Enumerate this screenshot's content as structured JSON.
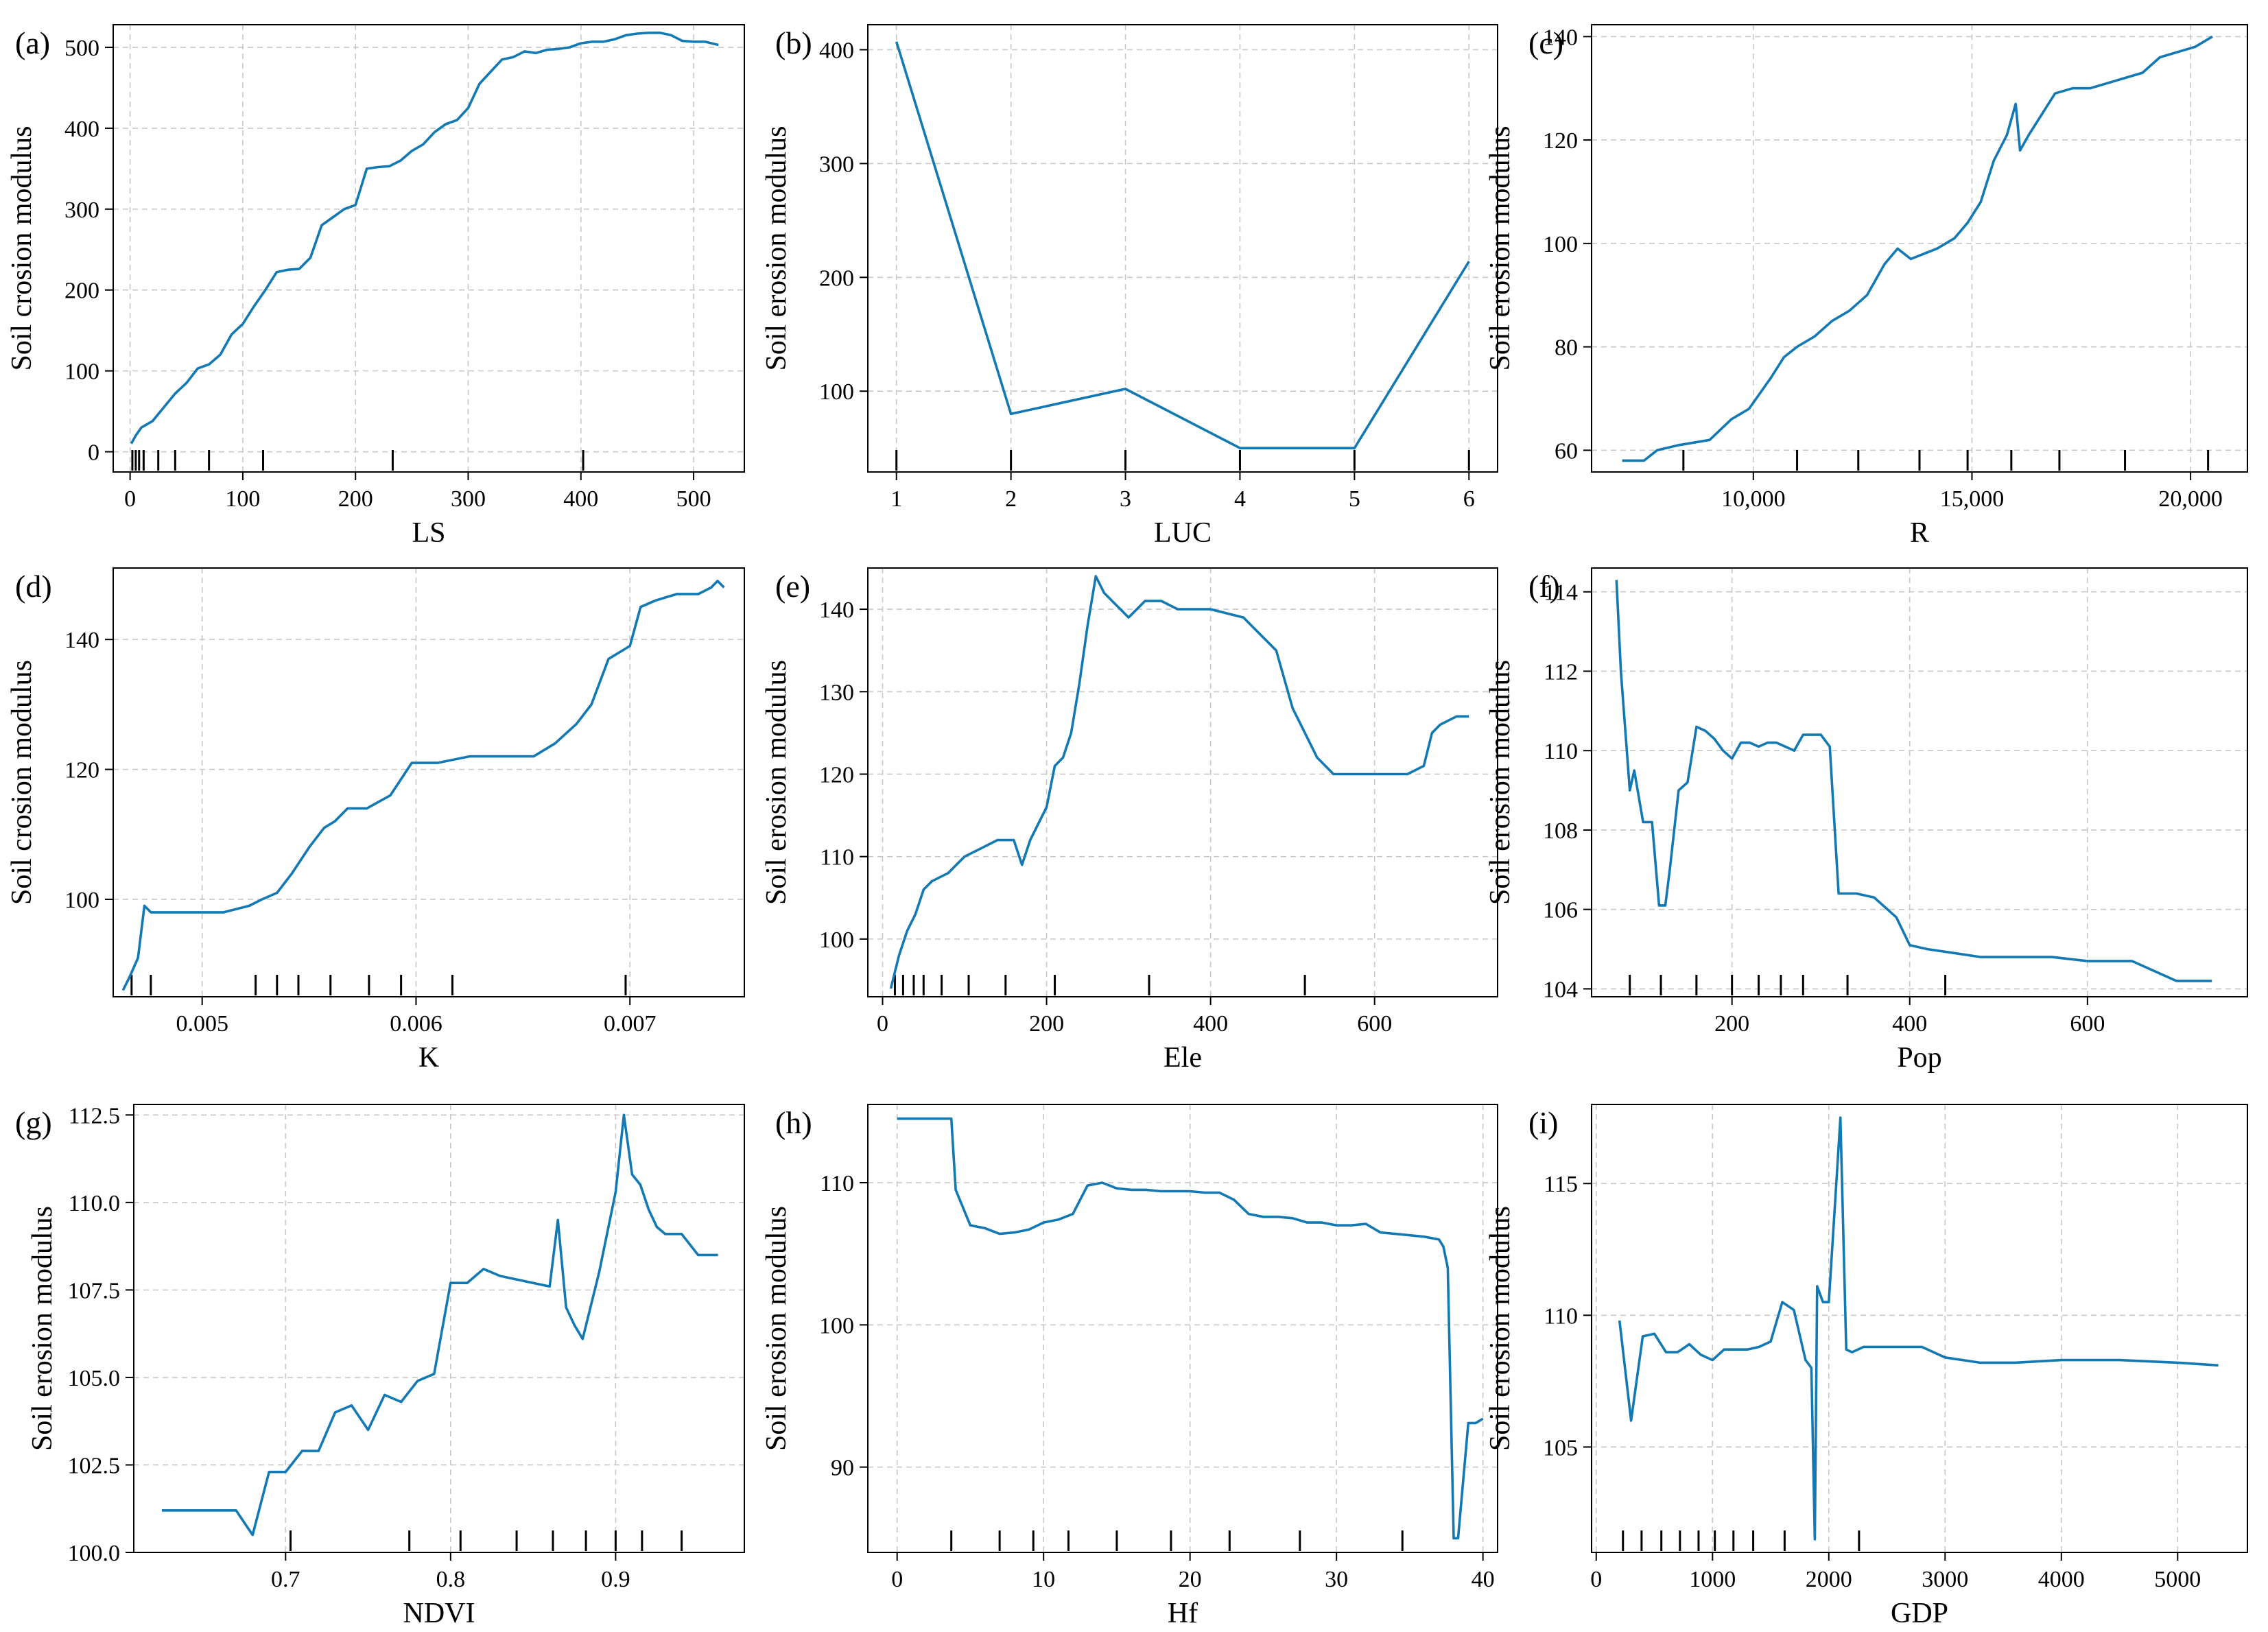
{
  "figure": {
    "series_color": "#1279b4",
    "line_shown_by": "line-chart"
  },
  "chart_data": [
    {
      "panel": "(a)",
      "type": "line",
      "xlabel": "LS",
      "ylabel": "Soil crosion modulus",
      "xlim": [
        -15,
        545
      ],
      "ylim": [
        -25,
        528
      ],
      "xticks": [
        0,
        100,
        200,
        300,
        400,
        500
      ],
      "xtick_labels": [
        "0",
        "100",
        "200",
        "300",
        "400",
        "500"
      ],
      "yticks": [
        0,
        100,
        200,
        300,
        400,
        500
      ],
      "ytick_labels": [
        "0",
        "100",
        "200",
        "300",
        "400",
        "500"
      ],
      "grid": true,
      "rug": [
        2,
        5,
        8,
        12,
        25,
        40,
        70,
        118,
        233,
        402
      ],
      "x": [
        1,
        5,
        10,
        20,
        30,
        40,
        50,
        60,
        70,
        80,
        90,
        100,
        110,
        120,
        130,
        140,
        150,
        160,
        170,
        180,
        190,
        200,
        210,
        220,
        230,
        240,
        250,
        260,
        270,
        280,
        290,
        300,
        310,
        320,
        330,
        340,
        350,
        360,
        370,
        380,
        390,
        400,
        410,
        420,
        430,
        440,
        450,
        460,
        470,
        480,
        490,
        500,
        510,
        522
      ],
      "y": [
        10,
        20,
        30,
        38,
        55,
        72,
        85,
        103,
        108,
        120,
        145,
        158,
        180,
        200,
        222,
        225,
        226,
        240,
        280,
        290,
        300,
        305,
        350,
        352,
        353,
        360,
        372,
        380,
        395,
        405,
        410,
        425,
        455,
        470,
        485,
        488,
        495,
        493,
        497,
        498,
        500,
        505,
        507,
        507,
        510,
        515,
        517,
        518,
        518,
        515,
        508,
        507,
        507,
        503
      ]
    },
    {
      "panel": "(b)",
      "type": "line",
      "xlabel": "LUC",
      "ylabel": "Soil erosion modulus",
      "xlim": [
        0.75,
        6.25
      ],
      "ylim": [
        29,
        422
      ],
      "xticks": [
        1,
        2,
        3,
        4,
        5,
        6
      ],
      "xtick_labels": [
        "1",
        "2",
        "3",
        "4",
        "5",
        "6"
      ],
      "yticks": [
        100,
        200,
        300,
        400
      ],
      "ytick_labels": [
        "100",
        "200",
        "300",
        "400"
      ],
      "grid": true,
      "rug": [
        1,
        2,
        3,
        4,
        5,
        6
      ],
      "x": [
        1,
        2,
        3,
        4,
        5,
        6
      ],
      "y": [
        407,
        80,
        102,
        50,
        50,
        214
      ]
    },
    {
      "panel": "(c)",
      "type": "line",
      "xlabel": "R",
      "ylabel": "Soil erosion modulus",
      "xlim": [
        6300,
        21300
      ],
      "ylim": [
        55.8,
        142.3
      ],
      "xticks": [
        10000,
        15000,
        20000
      ],
      "xtick_labels": [
        "10,000",
        "15,000",
        "20,000"
      ],
      "yticks": [
        60,
        80,
        100,
        120,
        140
      ],
      "ytick_labels": [
        "60",
        "80",
        "100",
        "120",
        "140"
      ],
      "grid": true,
      "rug": [
        8400,
        11000,
        12400,
        13800,
        14900,
        15900,
        17000,
        18500,
        20400
      ],
      "x": [
        7000,
        7500,
        7800,
        8300,
        9000,
        9500,
        9900,
        10400,
        10700,
        11000,
        11400,
        11800,
        12200,
        12600,
        13000,
        13300,
        13600,
        13900,
        14200,
        14600,
        14900,
        15200,
        15500,
        15800,
        16000,
        16100,
        16300,
        16600,
        16900,
        17300,
        17700,
        18100,
        18500,
        18900,
        19300,
        19700,
        20100,
        20500
      ],
      "y": [
        58,
        58,
        60,
        61,
        62,
        66,
        68,
        74,
        78,
        80,
        82,
        85,
        87,
        90,
        96,
        99,
        97,
        98,
        99,
        101,
        104,
        108,
        116,
        121,
        127,
        118,
        121,
        125,
        129,
        130,
        130,
        131,
        132,
        133,
        136,
        137,
        138,
        140
      ]
    },
    {
      "panel": "(d)",
      "type": "line",
      "xlabel": "K",
      "ylabel": "Soil crosion modulus",
      "xlim": [
        0.004584,
        0.007535
      ],
      "ylim": [
        85,
        151
      ],
      "xticks": [
        0.005,
        0.006,
        0.007
      ],
      "xtick_labels": [
        "0.005",
        "0.006",
        "0.007"
      ],
      "yticks": [
        100,
        120,
        140
      ],
      "ytick_labels": [
        "100",
        "120",
        "140"
      ],
      "grid": true,
      "rug": [
        0.00467,
        0.00476,
        0.00525,
        0.00535,
        0.00545,
        0.0056,
        0.00578,
        0.00593,
        0.00617,
        0.00698
      ],
      "x": [
        0.00463,
        0.00466,
        0.0047,
        0.00473,
        0.00476,
        0.0048,
        0.0049,
        0.0051,
        0.00522,
        0.00528,
        0.00535,
        0.00542,
        0.0055,
        0.00557,
        0.00562,
        0.00568,
        0.00577,
        0.00588,
        0.00598,
        0.0061,
        0.00625,
        0.0064,
        0.00655,
        0.00665,
        0.00675,
        0.00682,
        0.0069,
        0.007,
        0.00705,
        0.00712,
        0.00722,
        0.00732,
        0.00738,
        0.00741,
        0.00744
      ],
      "y": [
        86,
        88,
        91,
        99,
        98,
        98,
        98,
        98,
        99,
        100,
        101,
        104,
        108,
        111,
        112,
        114,
        114,
        116,
        121,
        121,
        122,
        122,
        122,
        124,
        127,
        130,
        137,
        139,
        145,
        146,
        147,
        147,
        148,
        149,
        148
      ]
    },
    {
      "panel": "(e)",
      "type": "line",
      "xlabel": "Ele",
      "ylabel": "Soil erosion modulus",
      "xlim": [
        -18,
        750
      ],
      "ylim": [
        93,
        145
      ],
      "xticks": [
        0,
        200,
        400,
        600
      ],
      "xtick_labels": [
        "0",
        "200",
        "400",
        "600"
      ],
      "yticks": [
        100,
        110,
        120,
        130,
        140
      ],
      "ytick_labels": [
        "100",
        "110",
        "120",
        "130",
        "140"
      ],
      "grid": true,
      "rug": [
        15,
        25,
        38,
        50,
        72,
        105,
        150,
        210,
        325,
        515
      ],
      "x": [
        10,
        20,
        30,
        40,
        50,
        60,
        80,
        100,
        120,
        140,
        160,
        170,
        180,
        190,
        200,
        210,
        220,
        230,
        240,
        250,
        260,
        270,
        280,
        290,
        300,
        310,
        320,
        340,
        360,
        400,
        440,
        460,
        480,
        500,
        520,
        530,
        550,
        580,
        600,
        620,
        640,
        660,
        670,
        680,
        700,
        715
      ],
      "y": [
        94,
        98,
        101,
        103,
        106,
        107,
        108,
        110,
        111,
        112,
        112,
        109,
        112,
        114,
        116,
        121,
        122,
        125,
        131,
        138,
        144,
        142,
        141,
        140,
        139,
        140,
        141,
        141,
        140,
        140,
        139,
        137,
        135,
        128,
        124,
        122,
        120,
        120,
        120,
        120,
        120,
        121,
        125,
        126,
        127,
        127
      ]
    },
    {
      "panel": "(f)",
      "type": "line",
      "xlabel": "Pop",
      "ylabel": "Soil erosion modulus",
      "xlim": [
        42,
        780
      ],
      "ylim": [
        103.8,
        114.6
      ],
      "xticks": [
        200,
        400,
        600
      ],
      "xtick_labels": [
        "200",
        "400",
        "600"
      ],
      "yticks": [
        104,
        106,
        108,
        110,
        112,
        114
      ],
      "ytick_labels": [
        "104",
        "106",
        "108",
        "110",
        "112",
        "114"
      ],
      "grid": true,
      "rug": [
        85,
        120,
        160,
        200,
        230,
        255,
        280,
        330,
        440
      ],
      "x": [
        70,
        75,
        80,
        85,
        90,
        100,
        110,
        118,
        125,
        130,
        140,
        150,
        160,
        170,
        180,
        190,
        200,
        210,
        220,
        230,
        240,
        250,
        260,
        270,
        280,
        290,
        300,
        310,
        320,
        340,
        360,
        375,
        385,
        400,
        420,
        450,
        480,
        520,
        560,
        600,
        650,
        700,
        740
      ],
      "y": [
        114.3,
        112,
        110.5,
        109,
        109.5,
        108.2,
        108.2,
        106.1,
        106.1,
        107.0,
        109.0,
        109.2,
        110.6,
        110.5,
        110.3,
        110,
        109.8,
        110.2,
        110.2,
        110.1,
        110.2,
        110.2,
        110.1,
        110.0,
        110.4,
        110.4,
        110.4,
        110.1,
        106.4,
        106.4,
        106.3,
        106.0,
        105.8,
        105.1,
        105.0,
        104.9,
        104.8,
        104.8,
        104.8,
        104.7,
        104.7,
        104.2,
        104.2
      ]
    },
    {
      "panel": "(g)",
      "type": "line",
      "xlabel": "NDVI",
      "ylabel": "Soil erosion modulus",
      "xlim": [
        0.608,
        0.978
      ],
      "ylim": [
        100.0,
        112.8
      ],
      "xticks": [
        0.7,
        0.8,
        0.9
      ],
      "xtick_labels": [
        "0.7",
        "0.8",
        "0.9"
      ],
      "yticks": [
        100.0,
        102.5,
        105.0,
        107.5,
        110.0,
        112.5
      ],
      "ytick_labels": [
        "100.0",
        "102.5",
        "105.0",
        "107.5",
        "110.0",
        "112.5"
      ],
      "grid": true,
      "rug": [
        0.703,
        0.775,
        0.806,
        0.84,
        0.862,
        0.882,
        0.9,
        0.916,
        0.94
      ],
      "x": [
        0.625,
        0.64,
        0.66,
        0.67,
        0.68,
        0.69,
        0.7,
        0.71,
        0.72,
        0.73,
        0.74,
        0.75,
        0.76,
        0.77,
        0.78,
        0.79,
        0.8,
        0.81,
        0.82,
        0.83,
        0.84,
        0.85,
        0.86,
        0.865,
        0.87,
        0.875,
        0.88,
        0.89,
        0.9,
        0.905,
        0.91,
        0.915,
        0.92,
        0.925,
        0.93,
        0.94,
        0.95,
        0.962
      ],
      "y": [
        101.2,
        101.2,
        101.2,
        101.2,
        100.5,
        102.3,
        102.3,
        102.9,
        102.9,
        104.0,
        104.2,
        103.5,
        104.5,
        104.3,
        104.9,
        105.1,
        107.7,
        107.7,
        108.1,
        107.9,
        107.8,
        107.7,
        107.6,
        109.5,
        107.0,
        106.5,
        106.1,
        108.0,
        110.3,
        112.5,
        110.8,
        110.5,
        109.8,
        109.3,
        109.1,
        109.1,
        108.5,
        108.5
      ]
    },
    {
      "panel": "(h)",
      "type": "line",
      "xlabel": "Hf",
      "ylabel": "Soil erosion modulus",
      "xlim": [
        -2,
        41
      ],
      "ylim": [
        84,
        115.5
      ],
      "xticks": [
        0,
        10,
        20,
        30,
        40
      ],
      "xtick_labels": [
        "0",
        "10",
        "20",
        "30",
        "40"
      ],
      "yticks": [
        90,
        100,
        110
      ],
      "ytick_labels": [
        "90",
        "100",
        "110"
      ],
      "grid": true,
      "rug": [
        3.7,
        7.0,
        9.3,
        11.7,
        15.0,
        18.7,
        22.7,
        27.5,
        34.5
      ],
      "x": [
        0,
        1,
        2,
        3,
        3.7,
        4,
        5,
        6,
        7,
        8,
        9,
        10,
        11,
        12,
        13,
        14,
        15,
        16,
        17,
        18,
        19,
        20,
        21,
        22,
        23,
        24,
        25,
        26,
        27,
        28,
        29,
        30,
        31,
        32,
        33,
        34,
        35,
        36,
        37,
        37.3,
        37.6,
        38,
        38.3,
        39,
        39.5,
        40
      ],
      "y": [
        114.5,
        114.5,
        114.5,
        114.5,
        114.5,
        109.5,
        107,
        106.8,
        106.4,
        106.5,
        106.7,
        107.2,
        107.4,
        107.8,
        109.8,
        110.0,
        109.6,
        109.5,
        109.5,
        109.4,
        109.4,
        109.4,
        109.3,
        109.3,
        108.8,
        107.8,
        107.6,
        107.6,
        107.5,
        107.2,
        107.2,
        107.0,
        107.0,
        107.1,
        106.5,
        106.4,
        106.3,
        106.2,
        106.0,
        105.5,
        104,
        85,
        85,
        93.1,
        93.1,
        93.4
      ]
    },
    {
      "panel": "(i)",
      "type": "line",
      "xlabel": "GDP",
      "ylabel": "Soil erosion modulus",
      "xlim": [
        -40,
        5600
      ],
      "ylim": [
        101,
        118
      ],
      "xticks": [
        0,
        1000,
        2000,
        3000,
        4000,
        5000
      ],
      "xtick_labels": [
        "0",
        "1000",
        "2000",
        "3000",
        "4000",
        "5000"
      ],
      "yticks": [
        105,
        110,
        115
      ],
      "ytick_labels": [
        "105",
        "110",
        "115"
      ],
      "grid": true,
      "rug": [
        230,
        390,
        560,
        720,
        880,
        1020,
        1180,
        1350,
        1620,
        2260
      ],
      "x": [
        200,
        300,
        400,
        500,
        600,
        700,
        800,
        900,
        1000,
        1100,
        1200,
        1300,
        1400,
        1500,
        1600,
        1700,
        1800,
        1850,
        1880,
        1900,
        1950,
        2000,
        2050,
        2100,
        2150,
        2200,
        2300,
        2400,
        2600,
        2800,
        3000,
        3300,
        3600,
        4000,
        4500,
        5000,
        5350
      ],
      "y": [
        109.8,
        106.0,
        109.2,
        109.3,
        108.6,
        108.6,
        108.9,
        108.5,
        108.3,
        108.7,
        108.7,
        108.7,
        108.8,
        109.0,
        110.5,
        110.2,
        108.3,
        108.0,
        101.5,
        111.1,
        110.5,
        110.5,
        114.0,
        117.5,
        108.7,
        108.6,
        108.8,
        108.8,
        108.8,
        108.8,
        108.4,
        108.2,
        108.2,
        108.3,
        108.3,
        108.2,
        108.1
      ]
    }
  ]
}
